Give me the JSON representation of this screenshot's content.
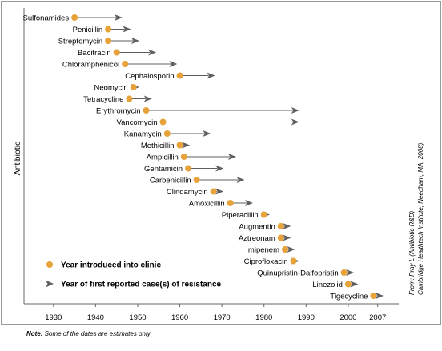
{
  "chart_data": {
    "type": "scatter",
    "ylabel": "Antibiotic",
    "x_ticks": [
      1930,
      1940,
      1950,
      1960,
      1970,
      1980,
      1990,
      2000,
      2007
    ],
    "xlim": [
      1923,
      2012
    ],
    "grid": false,
    "legend_placement": "bottom-left",
    "series": [
      {
        "name": "Year introduced into clinic",
        "marker": "dot",
        "color": "#e8a23a"
      },
      {
        "name": "Year of first reported case(s) of resistance",
        "marker": "arrow",
        "color": "#5f5f5f"
      }
    ],
    "antibiotics": [
      {
        "name": "Sulfonamides",
        "introduced": 1935,
        "resistance": 1946
      },
      {
        "name": "Penicillin",
        "introduced": 1943,
        "resistance": 1948
      },
      {
        "name": "Streptomycin",
        "introduced": 1943,
        "resistance": 1950
      },
      {
        "name": "Bacitracin",
        "introduced": 1945,
        "resistance": 1954
      },
      {
        "name": "Chloramphenicol",
        "introduced": 1947,
        "resistance": 1959
      },
      {
        "name": "Cephalosporin",
        "introduced": 1960,
        "resistance": 1968
      },
      {
        "name": "Neomycin",
        "introduced": 1949,
        "resistance": 1950
      },
      {
        "name": "Tetracycline",
        "introduced": 1948,
        "resistance": 1953
      },
      {
        "name": "Erythromycin",
        "introduced": 1952,
        "resistance": 1988
      },
      {
        "name": "Vancomycin",
        "introduced": 1956,
        "resistance": 1988
      },
      {
        "name": "Kanamycin",
        "introduced": 1957,
        "resistance": 1967
      },
      {
        "name": "Methicillin",
        "introduced": 1960,
        "resistance": 1962
      },
      {
        "name": "Ampicillin",
        "introduced": 1961,
        "resistance": 1973
      },
      {
        "name": "Gentamicin",
        "introduced": 1962,
        "resistance": 1970
      },
      {
        "name": "Carbenicillin",
        "introduced": 1964,
        "resistance": 1975
      },
      {
        "name": "Clindamycin",
        "introduced": 1968,
        "resistance": 1970
      },
      {
        "name": "Amoxicillin",
        "introduced": 1972,
        "resistance": 1977
      },
      {
        "name": "Piperacillin",
        "introduced": 1980,
        "resistance": 1981
      },
      {
        "name": "Augmentin",
        "introduced": 1984,
        "resistance": 1986
      },
      {
        "name": "Aztreonam",
        "introduced": 1984,
        "resistance": 1986
      },
      {
        "name": "Imipenem",
        "introduced": 1985,
        "resistance": 1987
      },
      {
        "name": "Ciprofloxacin",
        "introduced": 1987,
        "resistance": 1988
      },
      {
        "name": "Quinupristin-Dalfopristin",
        "introduced": 1999,
        "resistance": 2001
      },
      {
        "name": "Linezolid",
        "introduced": 2000,
        "resistance": 2002
      },
      {
        "name": "Tigecycline",
        "introduced": 2006,
        "resistance": 2008
      }
    ]
  },
  "source": {
    "line1": "From: Pray L (Antibiotic R&D)",
    "line2": "Cambridge Healthtech Institute, Needham, MA, 2008)."
  },
  "note": {
    "label": "Note:",
    "text": " Some of the dates are estimates only"
  },
  "colors": {
    "dot": "#e8a23a",
    "arrow": "#5f5f5f",
    "frame": "#999999",
    "text": "#000000"
  }
}
